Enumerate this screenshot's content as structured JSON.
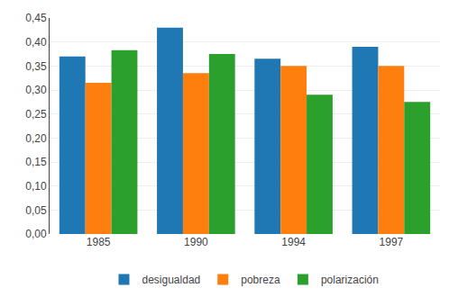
{
  "chart_data": {
    "type": "bar",
    "categories": [
      "1985",
      "1990",
      "1994",
      "1997"
    ],
    "series": [
      {
        "name": "desigualdad",
        "values": [
          0.37,
          0.43,
          0.365,
          0.39
        ]
      },
      {
        "name": "pobreza",
        "values": [
          0.315,
          0.335,
          0.35,
          0.35
        ]
      },
      {
        "name": "polarización",
        "values": [
          0.383,
          0.375,
          0.29,
          0.275
        ]
      }
    ],
    "ylim": [
      0,
      0.45
    ],
    "yticks": [
      {
        "value": 0.0,
        "label": "0,00"
      },
      {
        "value": 0.05,
        "label": "0,05"
      },
      {
        "value": 0.1,
        "label": "0,10"
      },
      {
        "value": 0.15,
        "label": "0,15"
      },
      {
        "value": 0.2,
        "label": "0,20"
      },
      {
        "value": 0.25,
        "label": "0,25"
      },
      {
        "value": 0.3,
        "label": "0,30"
      },
      {
        "value": 0.35,
        "label": "0,35"
      },
      {
        "value": 0.4,
        "label": "0,40"
      },
      {
        "value": 0.45,
        "label": "0,45"
      }
    ],
    "grid": true,
    "legend": "bottom"
  }
}
